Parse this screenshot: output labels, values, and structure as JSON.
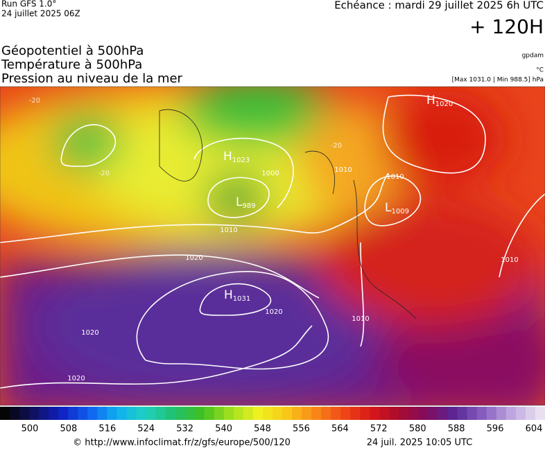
{
  "header": {
    "run": "Run GFS 1.0°",
    "run_date": "24 juillet 2025 06Z",
    "valid": "Echéance : mardi 29 juillet 2025 6h UTC",
    "lead": "+ 120H",
    "fields": [
      "Géopotentiel à 500hPa",
      "Température à 500hPa",
      "Pression au niveau de la mer"
    ],
    "units": [
      "gpdam",
      "°C",
      "[Max 1031.0 | Min 988.5] hPa"
    ]
  },
  "map": {
    "centers": [
      {
        "letter": "H",
        "value": "1031"
      },
      {
        "letter": "H",
        "value": "1023"
      },
      {
        "letter": "L",
        "value": "989"
      },
      {
        "letter": "L",
        "value": "1009"
      },
      {
        "letter": "H",
        "value": "1020"
      }
    ],
    "isobar_labels": [
      "1020",
      "1020",
      "1020",
      "1020",
      "1010",
      "1010",
      "1010",
      "1010",
      "1010",
      "1000"
    ],
    "isotherm_labels": [
      "-20",
      "-20",
      "-20"
    ]
  },
  "colorbar": {
    "ticks": [
      500,
      508,
      516,
      524,
      532,
      540,
      548,
      556,
      564,
      572,
      580,
      588,
      596,
      604
    ]
  },
  "footer": {
    "source": "© http://www.infoclimat.fr/z/gfs/europe/500/120",
    "created": "24 juil. 2025 10:05 UTC"
  }
}
